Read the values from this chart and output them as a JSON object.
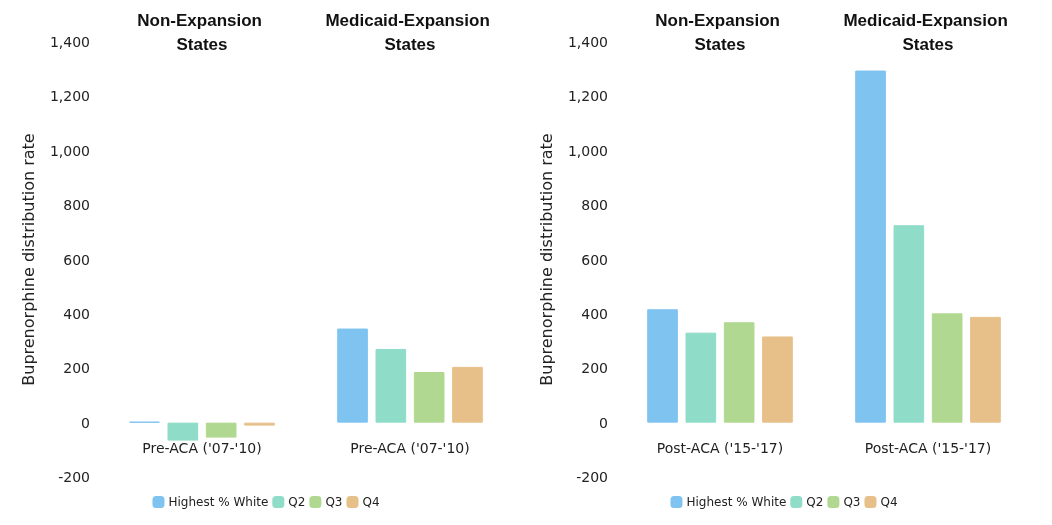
{
  "chart_data": [
    {
      "type": "bar",
      "ylabel": "Buprenorphine distribution rate",
      "categories": [
        "Pre-ACA ('07-'10)",
        "Pre-ACA ('07-'10)"
      ],
      "annotations": [
        "Non-Expansion States",
        "Medicaid-Expansion States"
      ],
      "series": [
        {
          "name": "Highest % White",
          "color": "#7fc3f0",
          "values": [
            3,
            346
          ]
        },
        {
          "name": "Q2",
          "color": "#8fdcc8",
          "values": [
            -66,
            271
          ]
        },
        {
          "name": "Q3",
          "color": "#b0d890",
          "values": [
            -55,
            186
          ]
        },
        {
          "name": "Q4",
          "color": "#e6c088",
          "values": [
            -11,
            205
          ]
        }
      ],
      "ylim": [
        -200,
        1400
      ],
      "yticks": [
        -200,
        0,
        200,
        400,
        600,
        800,
        {
          "value": 1000,
          "label": "1,000"
        },
        {
          "value": 1200,
          "label": "1,200"
        },
        {
          "value": 1400,
          "label": "1,400"
        }
      ],
      "grid": false,
      "legend": "bottom"
    },
    {
      "type": "bar",
      "ylabel": "Buprenorphine distribution rate",
      "categories": [
        "Post-ACA ('15-'17)",
        "Post-ACA ('15-'17)"
      ],
      "annotations": [
        "Non-Expansion States",
        "Medicaid-Expansion States"
      ],
      "series": [
        {
          "name": "Highest % White",
          "color": "#7fc3f0",
          "values": [
            417,
            1295
          ]
        },
        {
          "name": "Q2",
          "color": "#8fdcc8",
          "values": [
            331,
            726
          ]
        },
        {
          "name": "Q3",
          "color": "#b0d890",
          "values": [
            369,
            402
          ]
        },
        {
          "name": "Q4",
          "color": "#e6c088",
          "values": [
            317,
            389
          ]
        }
      ],
      "ylim": [
        -200,
        1400
      ],
      "yticks": [
        -200,
        0,
        200,
        400,
        600,
        800,
        {
          "value": 1000,
          "label": "1,000"
        },
        {
          "value": 1200,
          "label": "1,200"
        },
        {
          "value": 1400,
          "label": "1,400"
        }
      ],
      "grid": false,
      "legend": "bottom"
    }
  ]
}
